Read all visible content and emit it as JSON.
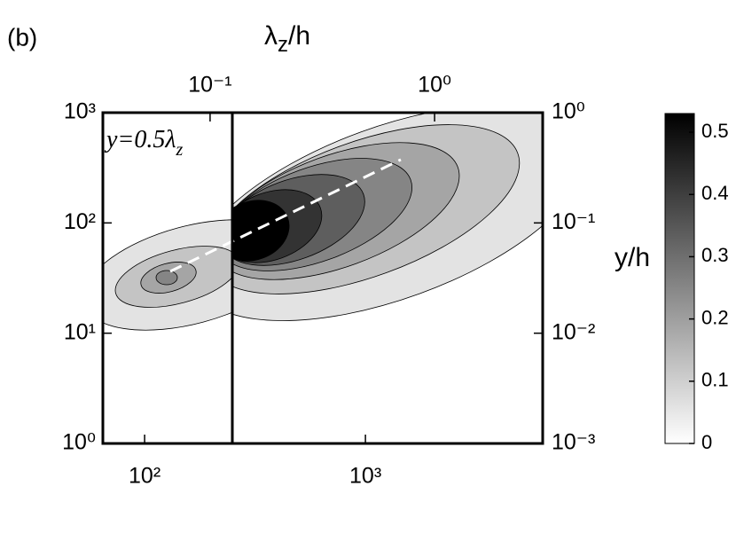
{
  "chart_data": {
    "type": "contour",
    "panel_label": "(b)",
    "x2_label": {
      "base": "λ",
      "sub": "z",
      "rest": "/h"
    },
    "y2_label": "y/h",
    "annotation": {
      "base": "y=0.5λ",
      "sub": "z"
    },
    "log_x": true,
    "log_y": true,
    "xlim": [
      64.7,
      6350
    ],
    "xticks": [
      {
        "value": 100,
        "label": "10²"
      },
      {
        "value": 1000,
        "label": "10³"
      }
    ],
    "ylim": [
      1,
      1000
    ],
    "yticks": [
      {
        "value": 1,
        "label": "10⁰"
      },
      {
        "value": 10,
        "label": "10¹"
      },
      {
        "value": 100,
        "label": "10²"
      },
      {
        "value": 1000,
        "label": "10³"
      }
    ],
    "x2lim": [
      0.0333,
      3.03
    ],
    "x2ticks": [
      {
        "value": 0.1,
        "label": "10⁻¹"
      },
      {
        "value": 1,
        "label": "10⁰"
      }
    ],
    "y2lim": [
      0.001,
      1
    ],
    "y2ticks": [
      {
        "value": 0.001,
        "label": "10⁻³"
      },
      {
        "value": 0.01,
        "label": "10⁻²"
      },
      {
        "value": 0.1,
        "label": "10⁻¹"
      },
      {
        "value": 1,
        "label": "10⁰"
      }
    ],
    "clim": [
      0,
      0.53
    ],
    "cticks": [
      0,
      0.1,
      0.2,
      0.3,
      0.4,
      0.5
    ]
  }
}
